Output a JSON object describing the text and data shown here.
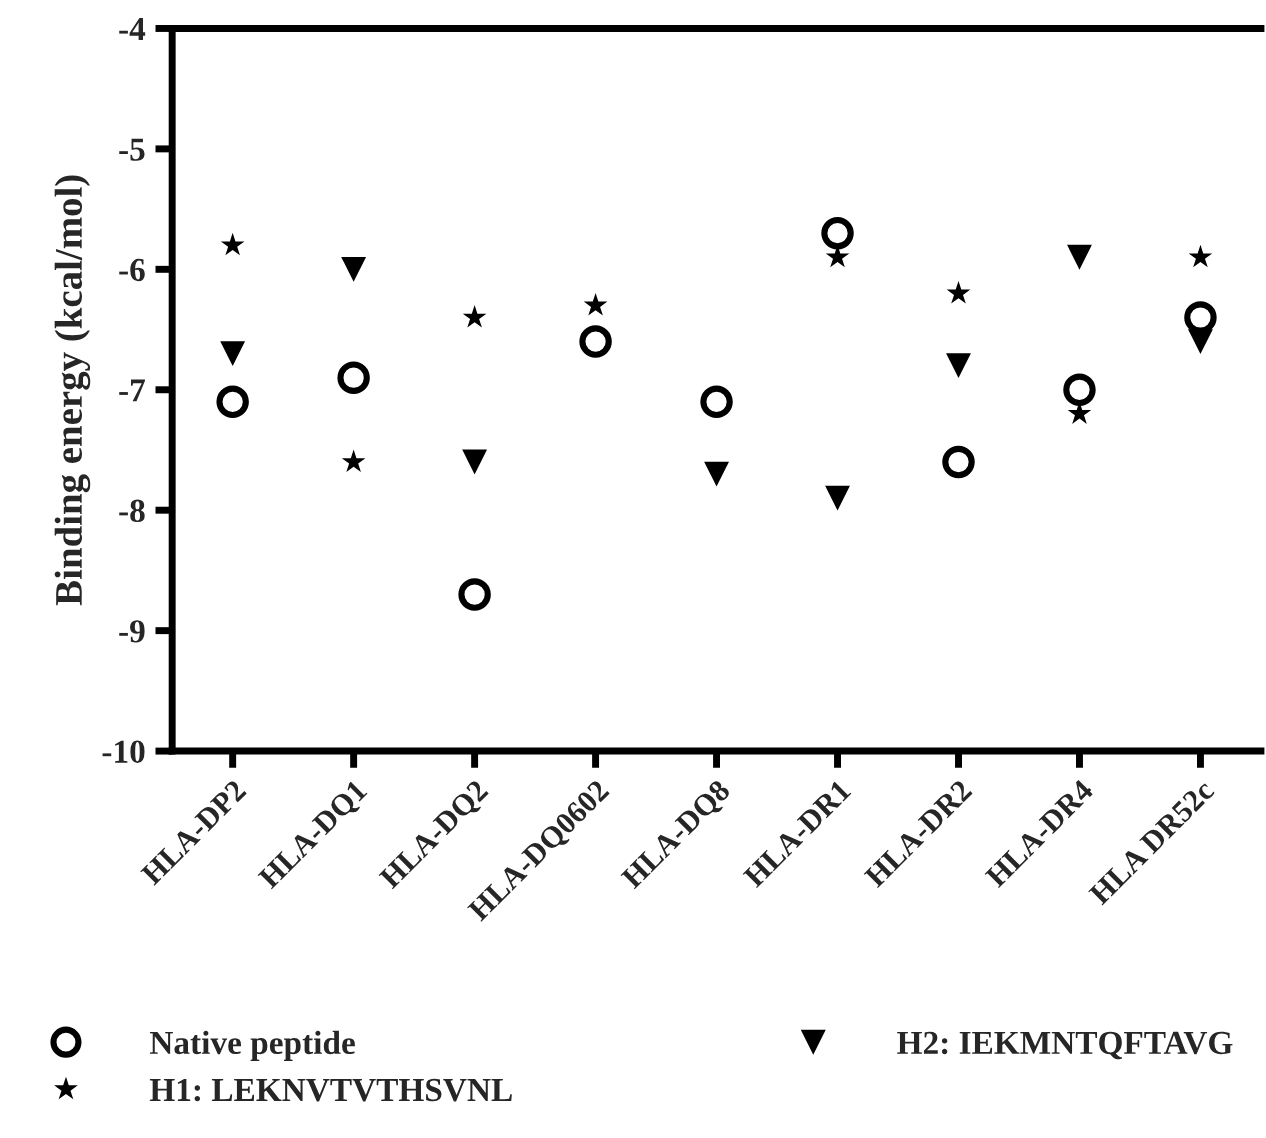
{
  "chart_data": {
    "type": "scatter",
    "ylabel": "Binding energy (kcal/mol)",
    "categories": [
      "HLA-DP2",
      "HLA-DQ1",
      "HLA-DQ2",
      "HLA-DQ0602",
      "HLA-DQ8",
      "HLA-DR1",
      "HLA-DR2",
      "HLA-DR4",
      "HLA DR52c"
    ],
    "series": [
      {
        "name": "Native peptide",
        "color": "#000000",
        "marker": "circle",
        "values": [
          -7.1,
          -6.9,
          -8.7,
          -6.6,
          -7.1,
          -5.7,
          -7.6,
          -7.0,
          -6.4
        ]
      },
      {
        "name": "H1: LEKNVTVTHSVNL",
        "color": "#000000",
        "marker": "star",
        "values": [
          -5.8,
          -7.6,
          -6.4,
          -6.3,
          null,
          -5.9,
          -6.2,
          -7.2,
          -5.9
        ]
      },
      {
        "name": "H2: IEKMNTQFTAVG",
        "color": "#000000",
        "marker": "triangle",
        "values": [
          -6.7,
          -6.0,
          -7.6,
          null,
          -7.7,
          -7.9,
          -6.8,
          -5.9,
          -6.6
        ]
      }
    ],
    "ylim": [
      -10,
      -4
    ],
    "yticks": [
      -10,
      -9,
      -8,
      -7,
      -6,
      -5,
      -4
    ],
    "grid": false,
    "legend": "bottom"
  }
}
